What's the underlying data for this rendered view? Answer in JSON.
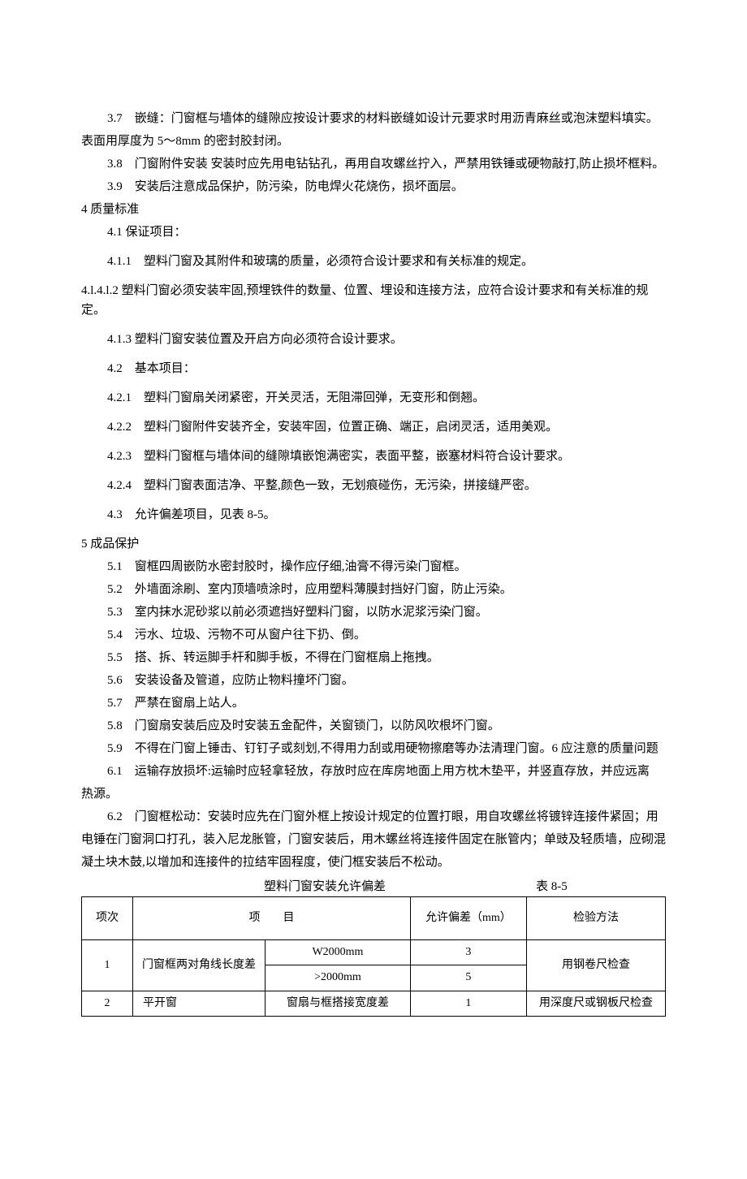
{
  "paragraphs": [
    {
      "cls": "indent1",
      "text": "3.7　嵌缝：门窗框与墙体的缝隙应按设计要求的材料嵌缝如设计元要求时用沥青麻丝或泡沫塑料填实。"
    },
    {
      "cls": "flush",
      "text": "表面用厚度为 5～8mm 的密封胶封闭。"
    },
    {
      "cls": "indent1",
      "text": "3.8　门窗附件安装 安装时应先用电钻钻孔，再用自攻螺丝拧入，严禁用铁锤或硬物敲打,防止损坏框料。"
    },
    {
      "cls": "indent1",
      "text": "3.9　安装后注意成品保护，防污染，防电焊火花烧伤，损坏面层。"
    },
    {
      "cls": "flush",
      "text": "4 质量标准"
    },
    {
      "cls": "indent1",
      "text": "4.1 保证项目："
    },
    {
      "cls": "indent1 spaced",
      "text": "4.1.1　塑料门窗及其附件和玻璃的质量，必须符合设计要求和有关标准的规定。"
    },
    {
      "cls": "flush spaced",
      "text": "4.l.4.l.2 塑料门窗必须安装牢固,预埋铁件的数量、位置、埋设和连接方法，应符合设计要求和有关标准的规定。"
    },
    {
      "cls": "indent1",
      "text": "4.1.3 塑料门窗安装位置及开启方向必须符合设计要求。"
    },
    {
      "cls": "indent1 spaced",
      "text": "4.2　基本项目："
    },
    {
      "cls": "indent1 spaced",
      "text": "4.2.1　塑料门窗扇关闭紧密，开关灵活，无阻滞回弹，无变形和倒翘。"
    },
    {
      "cls": "indent1 spaced",
      "text": "4.2.2　塑料门窗附件安装齐全，安装牢固，位置正确、端正，启闭灵活，适用美观。"
    },
    {
      "cls": "indent1 spaced",
      "text": "4.2.3　塑料门窗框与墙体间的缝隙填嵌饱满密实，表面平整，嵌塞材料符合设计要求。"
    },
    {
      "cls": "indent1 spaced",
      "text": "4.2.4　塑料门窗表面洁净、平整,颜色一致，无划痕碰伤，无污染，拼接缝严密。"
    },
    {
      "cls": "indent1 spaced",
      "text": "4.3　允许偏差项目，见表 8-5。"
    },
    {
      "cls": "flush",
      "text": "5 成品保护"
    },
    {
      "cls": "indent1",
      "text": "5.1　窗框四周嵌防水密封胶时，操作应仔细,油膏不得污染门窗框。"
    },
    {
      "cls": "indent1",
      "text": "5.2　外墙面涂刷、室内顶墙喷涂时，应用塑料薄膜封挡好门窗，防止污染。"
    },
    {
      "cls": "indent1",
      "text": "5.3　室内抹水泥砂浆以前必须遮挡好塑料门窗，以防水泥浆污染门窗。"
    },
    {
      "cls": "indent1",
      "text": "5.4　污水、垃圾、污物不可从窗户往下扔、倒。"
    },
    {
      "cls": "indent1",
      "text": "5.5　搭、拆、转运脚手杆和脚手板，不得在门窗框扇上拖拽。"
    },
    {
      "cls": "indent1",
      "text": "5.6　安装设备及管道，应防止物料撞坏门窗。"
    },
    {
      "cls": "indent1",
      "text": "5.7　严禁在窗扇上站人。"
    },
    {
      "cls": "indent1",
      "text": "5.8　门窗扇安装后应及时安装五金配件，关窗锁门，以防风吹根坏门窗。"
    },
    {
      "cls": "indent1",
      "text": "5.9　不得在门窗上锤击、钉钉子或刻划,不得用力刮或用硬物擦磨等办法清理门窗。6 应注意的质量问题"
    },
    {
      "cls": "indent1",
      "text": "6.1　运输存放损坏:运输时应轻拿轻放，存放时应在库房地面上用方枕木垫平，并竖直存放，并应远离"
    },
    {
      "cls": "flush",
      "text": "热源。"
    },
    {
      "cls": "indent1",
      "text": "6.2　门窗框松动：安装时应先在门窗外框上按设计规定的位置打眼，用自攻螺丝将镀锌连接件紧固；用"
    },
    {
      "cls": "flush",
      "text": "电锤在门窗洞口打孔，装入尼龙胀管，门窗安装后，用木螺丝将连接件固定在胀管内；单豉及轻质墙，应砌混"
    },
    {
      "cls": "flush",
      "text": "凝土块木鼓,以增加和连接件的拉结牢固程度，使门框安装后不松动。"
    }
  ],
  "table": {
    "caption_center": "塑料门窗安装允许偏差",
    "caption_right": "表 8-5",
    "headers": {
      "col1": "项次",
      "col2": "项　　目",
      "col3": "允许偏差（mm）",
      "col4": "检验方法"
    },
    "row1": {
      "num": "1",
      "itemA": "门窗框两对角线长度差",
      "sub1": "W2000mm",
      "sub2": ">2000mm",
      "dev1": "3",
      "dev2": "5",
      "check": "用钢卷尺检查"
    },
    "row2": {
      "num": "2",
      "itemA": "平开窗",
      "itemB": "窗扇与框搭接宽度差",
      "dev": "1",
      "check": "用深度尺或钢板尺检查"
    }
  }
}
